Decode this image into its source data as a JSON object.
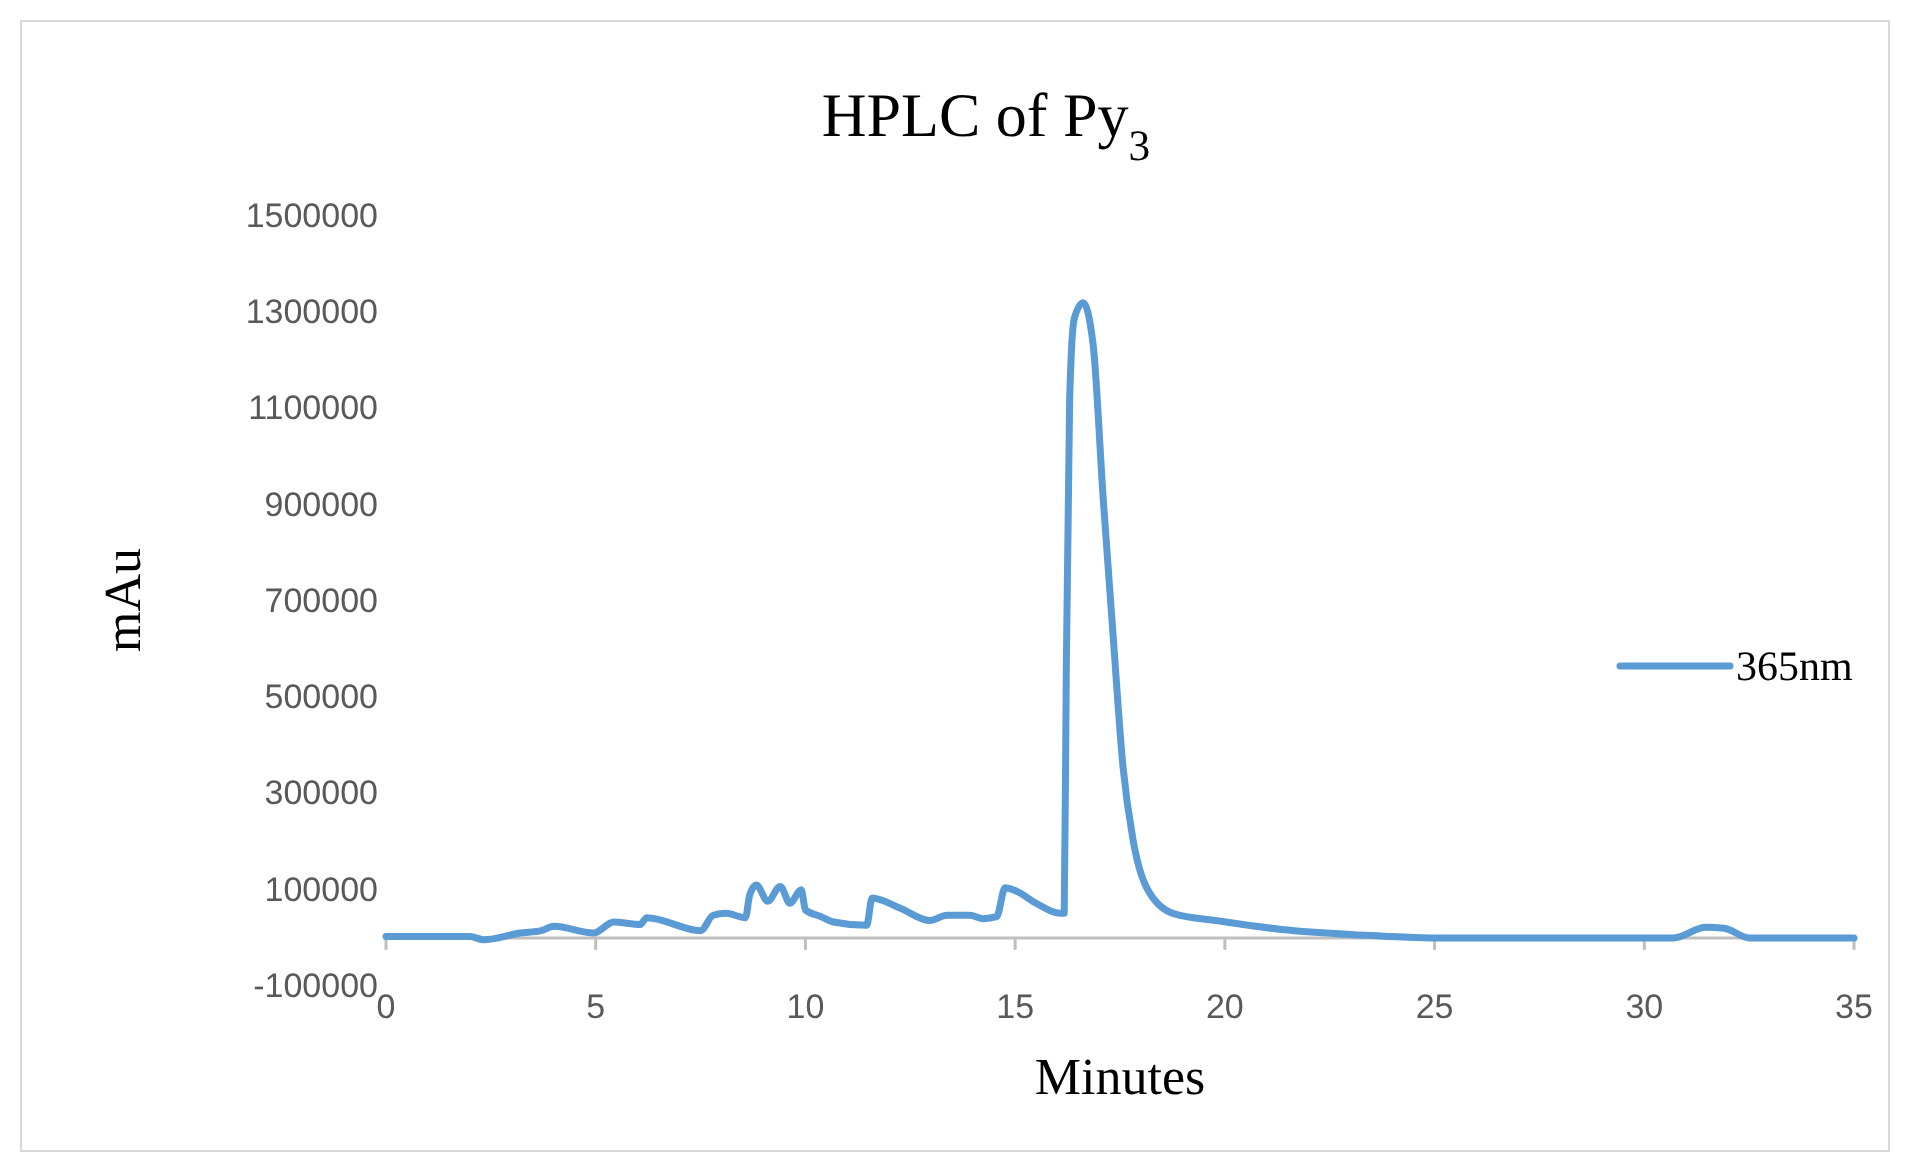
{
  "chart_data": {
    "type": "line",
    "title": "HPLC of Py$_{3}$",
    "xlabel": "Minutes",
    "ylabel": "mAu",
    "xlim": [
      0,
      35
    ],
    "xticks": [
      0,
      5,
      10,
      15,
      20,
      25,
      30,
      35
    ],
    "ylim": [
      -100000,
      1500000
    ],
    "yticks": [
      -100000,
      100000,
      300000,
      500000,
      700000,
      900000,
      1100000,
      1300000,
      1500000
    ],
    "grid": false,
    "legend": "right",
    "marker": "none",
    "line_style": "solid",
    "series": [
      {
        "name": "365nm",
        "color": "#5b9bd5",
        "x": [
          0,
          2.0,
          2.33,
          3.2,
          3.7,
          4.0,
          4.95,
          5.43,
          6.06,
          6.22,
          7.5,
          7.8,
          8.1,
          8.57,
          8.67,
          8.83,
          9.1,
          9.4,
          9.63,
          9.9,
          10.0,
          10.35,
          10.67,
          11.46,
          11.59,
          12.25,
          12.97,
          13.37,
          13.92,
          14.24,
          14.56,
          14.76,
          15.03,
          15.5,
          16.06,
          16.17,
          16.22,
          16.3,
          16.41,
          16.62,
          16.86,
          17.1,
          17.33,
          17.57,
          17.81,
          18.12,
          18.76,
          19.87,
          21.3,
          23.7,
          24.9,
          30.7,
          31.46,
          31.9,
          32.5,
          35
        ],
        "values": [
          3000,
          3000,
          -4000,
          10000,
          15000,
          24000,
          10000,
          33000,
          28000,
          42000,
          15000,
          47000,
          51000,
          42000,
          89000,
          110000,
          76000,
          107000,
          72000,
          100000,
          58000,
          45000,
          33000,
          26000,
          83000,
          62000,
          36000,
          47000,
          47000,
          40000,
          44000,
          104000,
          97000,
          72000,
          51000,
          51000,
          565000,
          1121000,
          1287000,
          1320000,
          1232000,
          912000,
          635000,
          357000,
          204000,
          107000,
          51000,
          35000,
          18000,
          4000,
          0,
          0,
          22000,
          20000,
          0,
          0
        ]
      }
    ]
  }
}
